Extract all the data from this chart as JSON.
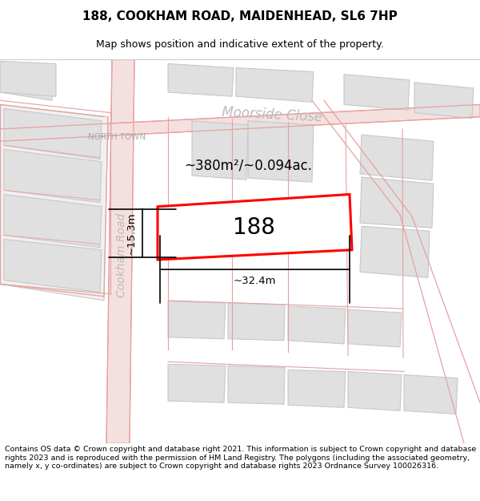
{
  "title_line1": "188, COOKHAM ROAD, MAIDENHEAD, SL6 7HP",
  "title_line2": "Map shows position and indicative extent of the property.",
  "footer_text": "Contains OS data © Crown copyright and database right 2021. This information is subject to Crown copyright and database rights 2023 and is reproduced with the permission of HM Land Registry. The polygons (including the associated geometry, namely x, y co-ordinates) are subject to Crown copyright and database rights 2023 Ordnance Survey 100026316.",
  "map_bg": "#f9f9f7",
  "road_color": "#f5e0e0",
  "road_edge": "#e8a0a0",
  "building_fill": "#e0e0e0",
  "building_edge": "#c8c8c8",
  "highlight_fill": "#ffffff",
  "highlight_edge": "#ff0000",
  "highlight_lw": 2.2,
  "label_188": "188",
  "area_label": "~380m²/~0.094ac.",
  "dim_width": "~32.4m",
  "dim_height": "~15.3m",
  "road_label_moorside": "Moorside Close",
  "road_label_cookham": "Cookham Road",
  "area_label_northtown": "NORTH TOWN",
  "title_fontsize": 11,
  "subtitle_fontsize": 9,
  "footer_fontsize": 6.8
}
